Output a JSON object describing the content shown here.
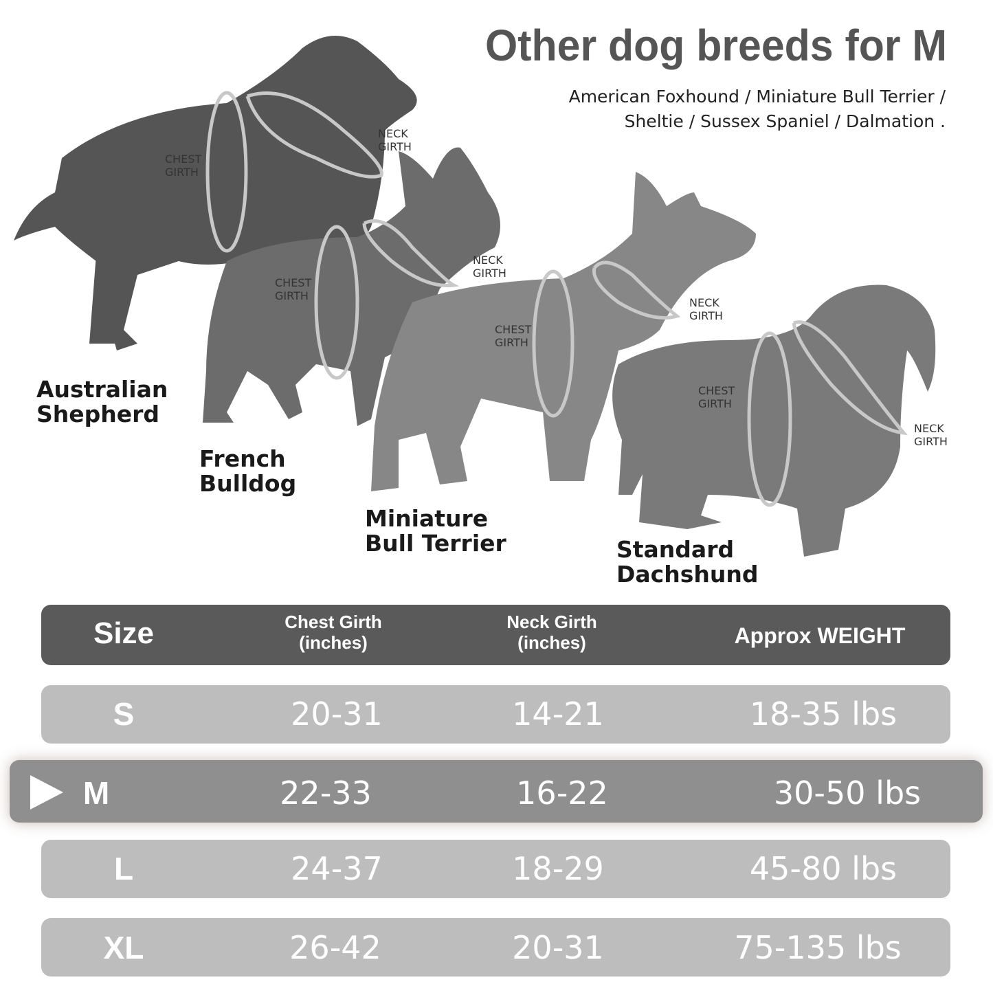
{
  "header": {
    "title": "Other dog breeds for M",
    "subtitle_lines": [
      "American Foxhound / Miniature Bull Terrier /",
      "Sheltie / Sussex Spaniel / Dalmation ."
    ]
  },
  "dogs": [
    {
      "name_lines": [
        "Australian",
        "Shepherd"
      ],
      "chest_lines": [
        "CHEST",
        "GIRTH"
      ],
      "neck_lines": [
        "NECK",
        "GIRTH"
      ]
    },
    {
      "name_lines": [
        "French",
        "Bulldog"
      ],
      "chest_lines": [
        "CHEST",
        "GIRTH"
      ],
      "neck_lines": [
        "NECK",
        "GIRTH"
      ]
    },
    {
      "name_lines": [
        "Miniature",
        "Bull Terrier"
      ],
      "chest_lines": [
        "CHEST",
        "GIRTH"
      ],
      "neck_lines": [
        "NECK",
        "GIRTH"
      ]
    },
    {
      "name_lines": [
        "Standard",
        "Dachshund"
      ],
      "chest_lines": [
        "CHEST",
        "GIRTH"
      ],
      "neck_lines": [
        "NECK",
        "GIRTH"
      ]
    }
  ],
  "table": {
    "header": [
      [
        "Size"
      ],
      [
        "Chest Girth",
        "(inches)"
      ],
      [
        "Neck Girth",
        "(inches)"
      ],
      [
        "Approx WEIGHT"
      ]
    ],
    "rows": [
      [
        "S",
        "20-31",
        "14-21",
        "18-35 lbs"
      ],
      [
        "M",
        "22-33",
        "16-22",
        "30-50 lbs"
      ],
      [
        "L",
        "24-37",
        "18-29",
        "45-80 lbs"
      ],
      [
        "XL",
        "26-42",
        "20-31",
        "75-135 lbs"
      ]
    ]
  }
}
